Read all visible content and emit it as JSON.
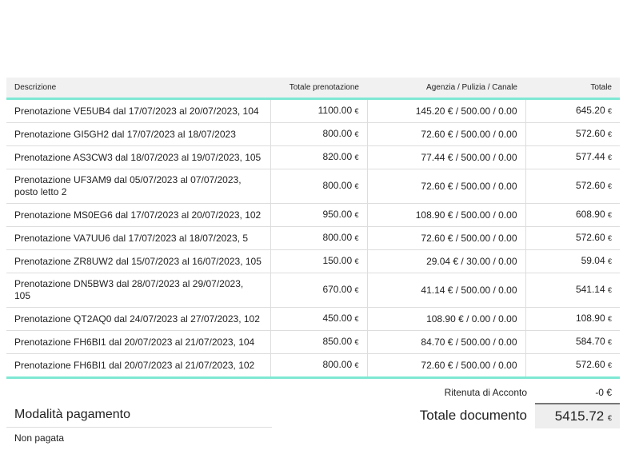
{
  "table": {
    "headers": [
      "Descrizione",
      "Totale prenotazione",
      "Agenzia / Pulizia / Canale",
      "Totale"
    ],
    "currency": "€",
    "rows": [
      {
        "desc": "Prenotazione VE5UB4 dal 17/07/2023 al 20/07/2023, 104",
        "tot_pren": "1100.00",
        "apc": "145.20 € / 500.00 / 0.00",
        "totale": "645.20"
      },
      {
        "desc": "Prenotazione GI5GH2 dal 17/07/2023 al 18/07/2023",
        "tot_pren": "800.00",
        "apc": "72.60 € / 500.00 / 0.00",
        "totale": "572.60"
      },
      {
        "desc": "Prenotazione AS3CW3 dal 18/07/2023 al 19/07/2023, 105",
        "tot_pren": "820.00",
        "apc": "77.44 € / 500.00 / 0.00",
        "totale": "577.44"
      },
      {
        "desc": "Prenotazione UF3AM9 dal 05/07/2023 al 07/07/2023, posto letto 2",
        "tot_pren": "800.00",
        "apc": "72.60 € / 500.00 / 0.00",
        "totale": "572.60"
      },
      {
        "desc": "Prenotazione MS0EG6 dal 17/07/2023 al 20/07/2023, 102",
        "tot_pren": "950.00",
        "apc": "108.90 € / 500.00 / 0.00",
        "totale": "608.90"
      },
      {
        "desc": "Prenotazione VA7UU6 dal 17/07/2023 al 18/07/2023, 5",
        "tot_pren": "800.00",
        "apc": "72.60 € / 500.00 / 0.00",
        "totale": "572.60"
      },
      {
        "desc": "Prenotazione ZR8UW2 dal 15/07/2023 al 16/07/2023, 105",
        "tot_pren": "150.00",
        "apc": "29.04 € / 30.00 / 0.00",
        "totale": "59.04"
      },
      {
        "desc": "Prenotazione DN5BW3 dal 28/07/2023 al 29/07/2023, 105",
        "tot_pren": "670.00",
        "apc": "41.14 € / 500.00 / 0.00",
        "totale": "541.14"
      },
      {
        "desc": "Prenotazione QT2AQ0 dal 24/07/2023 al 27/07/2023, 102",
        "tot_pren": "450.00",
        "apc": "108.90 € / 0.00 / 0.00",
        "totale": "108.90"
      },
      {
        "desc": "Prenotazione FH6BI1 dal 20/07/2023 al 21/07/2023, 104",
        "tot_pren": "850.00",
        "apc": "84.70 € / 500.00 / 0.00",
        "totale": "584.70"
      },
      {
        "desc": "Prenotazione FH6BI1 dal 20/07/2023 al 21/07/2023, 102",
        "tot_pren": "800.00",
        "apc": "72.60 € / 500.00 / 0.00",
        "totale": "572.60"
      }
    ]
  },
  "summary": {
    "ritenuta_label": "Ritenuta di Acconto",
    "ritenuta_value": "-0 €",
    "totale_label": "Totale documento",
    "totale_value": "5415.72"
  },
  "payment": {
    "title": "Modalità pagamento",
    "status": "Non pagata"
  }
}
